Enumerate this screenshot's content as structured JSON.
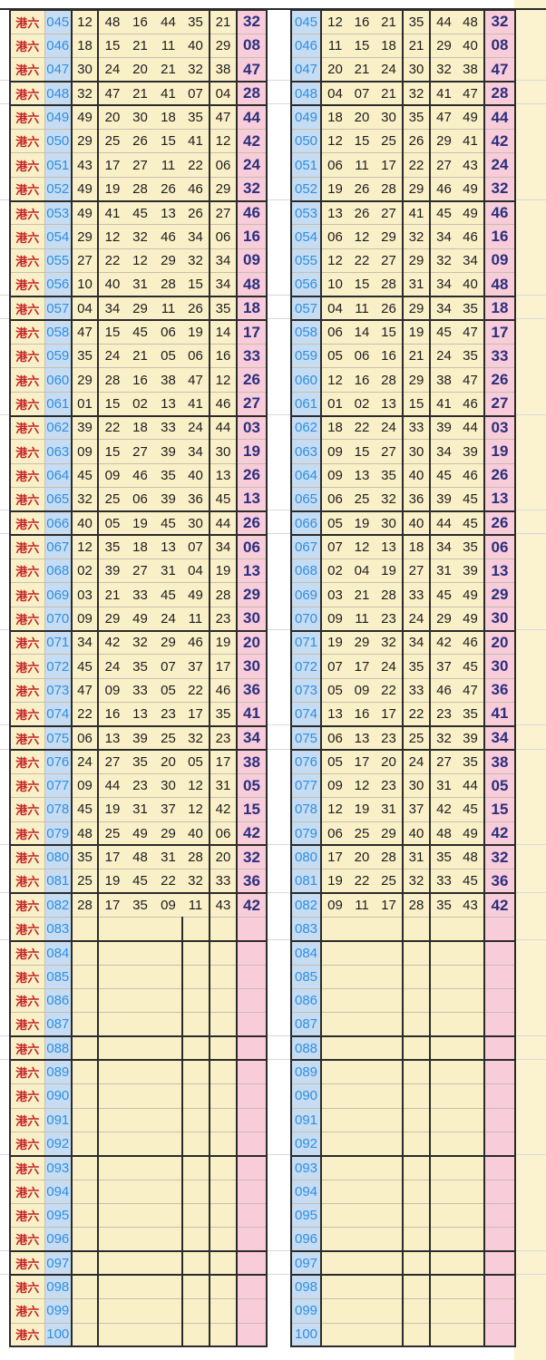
{
  "meta": {
    "series_label": "港六",
    "first_issue": "045",
    "last_issue": "100",
    "left_table": "numbers in drawn order",
    "right_table": "numbers in ascending order"
  },
  "colors": {
    "cell_yellow": "#FAF0C8",
    "issue_column_blue": "#C6DCF2",
    "special_column_pink": "#F8CCD9",
    "right_margin_strip": "#FBF2D0",
    "series_label_red": "#C52222",
    "issue_text_blue": "#2E8FE2",
    "number_text": "#1D1D1D",
    "special_text_navy": "#2B2F7E",
    "thin_border": "#C6BFAE",
    "heavy_border": "#2B2B2B"
  },
  "heavy_after": [
    47,
    48,
    52,
    56,
    57,
    61,
    65,
    66,
    70,
    74,
    75,
    79,
    81,
    83,
    87,
    88,
    92,
    96,
    97
  ],
  "rows": [
    {
      "issue": "045",
      "drawn": [
        "12",
        "48",
        "16",
        "44",
        "35",
        "21"
      ],
      "sorted": [
        "12",
        "16",
        "21",
        "35",
        "44",
        "48"
      ],
      "special": "32"
    },
    {
      "issue": "046",
      "drawn": [
        "18",
        "15",
        "21",
        "11",
        "40",
        "29"
      ],
      "sorted": [
        "11",
        "15",
        "18",
        "21",
        "29",
        "40"
      ],
      "special": "08"
    },
    {
      "issue": "047",
      "drawn": [
        "30",
        "24",
        "20",
        "21",
        "32",
        "38"
      ],
      "sorted": [
        "20",
        "21",
        "24",
        "30",
        "32",
        "38"
      ],
      "special": "47"
    },
    {
      "issue": "048",
      "drawn": [
        "32",
        "47",
        "21",
        "41",
        "07",
        "04"
      ],
      "sorted": [
        "04",
        "07",
        "21",
        "32",
        "41",
        "47"
      ],
      "special": "28"
    },
    {
      "issue": "049",
      "drawn": [
        "49",
        "20",
        "30",
        "18",
        "35",
        "47"
      ],
      "sorted": [
        "18",
        "20",
        "30",
        "35",
        "47",
        "49"
      ],
      "special": "44"
    },
    {
      "issue": "050",
      "drawn": [
        "29",
        "25",
        "26",
        "15",
        "41",
        "12"
      ],
      "sorted": [
        "12",
        "15",
        "25",
        "26",
        "29",
        "41"
      ],
      "special": "42"
    },
    {
      "issue": "051",
      "drawn": [
        "43",
        "17",
        "27",
        "11",
        "22",
        "06"
      ],
      "sorted": [
        "06",
        "11",
        "17",
        "22",
        "27",
        "43"
      ],
      "special": "24"
    },
    {
      "issue": "052",
      "drawn": [
        "49",
        "19",
        "28",
        "26",
        "46",
        "29"
      ],
      "sorted": [
        "19",
        "26",
        "28",
        "29",
        "46",
        "49"
      ],
      "special": "32"
    },
    {
      "issue": "053",
      "drawn": [
        "49",
        "41",
        "45",
        "13",
        "26",
        "27"
      ],
      "sorted": [
        "13",
        "26",
        "27",
        "41",
        "45",
        "49"
      ],
      "special": "46"
    },
    {
      "issue": "054",
      "drawn": [
        "29",
        "12",
        "32",
        "46",
        "34",
        "06"
      ],
      "sorted": [
        "06",
        "12",
        "29",
        "32",
        "34",
        "46"
      ],
      "special": "16"
    },
    {
      "issue": "055",
      "drawn": [
        "27",
        "22",
        "12",
        "29",
        "32",
        "34"
      ],
      "sorted": [
        "12",
        "22",
        "27",
        "29",
        "32",
        "34"
      ],
      "special": "09"
    },
    {
      "issue": "056",
      "drawn": [
        "10",
        "40",
        "31",
        "28",
        "15",
        "34"
      ],
      "sorted": [
        "10",
        "15",
        "28",
        "31",
        "34",
        "40"
      ],
      "special": "48"
    },
    {
      "issue": "057",
      "drawn": [
        "04",
        "34",
        "29",
        "11",
        "26",
        "35"
      ],
      "sorted": [
        "04",
        "11",
        "26",
        "29",
        "34",
        "35"
      ],
      "special": "18"
    },
    {
      "issue": "058",
      "drawn": [
        "47",
        "15",
        "45",
        "06",
        "19",
        "14"
      ],
      "sorted": [
        "06",
        "14",
        "15",
        "19",
        "45",
        "47"
      ],
      "special": "17"
    },
    {
      "issue": "059",
      "drawn": [
        "35",
        "24",
        "21",
        "05",
        "06",
        "16"
      ],
      "sorted": [
        "05",
        "06",
        "16",
        "21",
        "24",
        "35"
      ],
      "special": "33"
    },
    {
      "issue": "060",
      "drawn": [
        "29",
        "28",
        "16",
        "38",
        "47",
        "12"
      ],
      "sorted": [
        "12",
        "16",
        "28",
        "29",
        "38",
        "47"
      ],
      "special": "26"
    },
    {
      "issue": "061",
      "drawn": [
        "01",
        "15",
        "02",
        "13",
        "41",
        "46"
      ],
      "sorted": [
        "01",
        "02",
        "13",
        "15",
        "41",
        "46"
      ],
      "special": "27"
    },
    {
      "issue": "062",
      "drawn": [
        "39",
        "22",
        "18",
        "33",
        "24",
        "44"
      ],
      "sorted": [
        "18",
        "22",
        "24",
        "33",
        "39",
        "44"
      ],
      "special": "03"
    },
    {
      "issue": "063",
      "drawn": [
        "09",
        "15",
        "27",
        "39",
        "34",
        "30"
      ],
      "sorted": [
        "09",
        "15",
        "27",
        "30",
        "34",
        "39"
      ],
      "special": "19"
    },
    {
      "issue": "064",
      "drawn": [
        "45",
        "09",
        "46",
        "35",
        "40",
        "13"
      ],
      "sorted": [
        "09",
        "13",
        "35",
        "40",
        "45",
        "46"
      ],
      "special": "26"
    },
    {
      "issue": "065",
      "drawn": [
        "32",
        "25",
        "06",
        "39",
        "36",
        "45"
      ],
      "sorted": [
        "06",
        "25",
        "32",
        "36",
        "39",
        "45"
      ],
      "special": "13"
    },
    {
      "issue": "066",
      "drawn": [
        "40",
        "05",
        "19",
        "45",
        "30",
        "44"
      ],
      "sorted": [
        "05",
        "19",
        "30",
        "40",
        "44",
        "45"
      ],
      "special": "26"
    },
    {
      "issue": "067",
      "drawn": [
        "12",
        "35",
        "18",
        "13",
        "07",
        "34"
      ],
      "sorted": [
        "07",
        "12",
        "13",
        "18",
        "34",
        "35"
      ],
      "special": "06"
    },
    {
      "issue": "068",
      "drawn": [
        "02",
        "39",
        "27",
        "31",
        "04",
        "19"
      ],
      "sorted": [
        "02",
        "04",
        "19",
        "27",
        "31",
        "39"
      ],
      "special": "13"
    },
    {
      "issue": "069",
      "drawn": [
        "03",
        "21",
        "33",
        "45",
        "49",
        "28"
      ],
      "sorted": [
        "03",
        "21",
        "28",
        "33",
        "45",
        "49"
      ],
      "special": "29"
    },
    {
      "issue": "070",
      "drawn": [
        "09",
        "29",
        "49",
        "24",
        "11",
        "23"
      ],
      "sorted": [
        "09",
        "11",
        "23",
        "24",
        "29",
        "49"
      ],
      "special": "30"
    },
    {
      "issue": "071",
      "drawn": [
        "34",
        "42",
        "32",
        "29",
        "46",
        "19"
      ],
      "sorted": [
        "19",
        "29",
        "32",
        "34",
        "42",
        "46"
      ],
      "special": "20"
    },
    {
      "issue": "072",
      "drawn": [
        "45",
        "24",
        "35",
        "07",
        "37",
        "17"
      ],
      "sorted": [
        "07",
        "17",
        "24",
        "35",
        "37",
        "45"
      ],
      "special": "30"
    },
    {
      "issue": "073",
      "drawn": [
        "47",
        "09",
        "33",
        "05",
        "22",
        "46"
      ],
      "sorted": [
        "05",
        "09",
        "22",
        "33",
        "46",
        "47"
      ],
      "special": "36"
    },
    {
      "issue": "074",
      "drawn": [
        "22",
        "16",
        "13",
        "23",
        "17",
        "35"
      ],
      "sorted": [
        "13",
        "16",
        "17",
        "22",
        "23",
        "35"
      ],
      "special": "41"
    },
    {
      "issue": "075",
      "drawn": [
        "06",
        "13",
        "39",
        "25",
        "32",
        "23"
      ],
      "sorted": [
        "06",
        "13",
        "23",
        "25",
        "32",
        "39"
      ],
      "special": "34"
    },
    {
      "issue": "076",
      "drawn": [
        "24",
        "27",
        "35",
        "20",
        "05",
        "17"
      ],
      "sorted": [
        "05",
        "17",
        "20",
        "24",
        "27",
        "35"
      ],
      "special": "38"
    },
    {
      "issue": "077",
      "drawn": [
        "09",
        "44",
        "23",
        "30",
        "12",
        "31"
      ],
      "sorted": [
        "09",
        "12",
        "23",
        "30",
        "31",
        "44"
      ],
      "special": "05"
    },
    {
      "issue": "078",
      "drawn": [
        "45",
        "19",
        "31",
        "37",
        "12",
        "42"
      ],
      "sorted": [
        "12",
        "19",
        "31",
        "37",
        "42",
        "45"
      ],
      "special": "15"
    },
    {
      "issue": "079",
      "drawn": [
        "48",
        "25",
        "49",
        "29",
        "40",
        "06"
      ],
      "sorted": [
        "06",
        "25",
        "29",
        "40",
        "48",
        "49"
      ],
      "special": "42"
    },
    {
      "issue": "080",
      "drawn": [
        "35",
        "17",
        "48",
        "31",
        "28",
        "20"
      ],
      "sorted": [
        "17",
        "20",
        "28",
        "31",
        "35",
        "48"
      ],
      "special": "32"
    },
    {
      "issue": "081",
      "drawn": [
        "25",
        "19",
        "45",
        "22",
        "32",
        "33"
      ],
      "sorted": [
        "19",
        "22",
        "25",
        "32",
        "33",
        "45"
      ],
      "special": "36"
    },
    {
      "issue": "082",
      "drawn": [
        "28",
        "17",
        "35",
        "09",
        "11",
        "43"
      ],
      "sorted": [
        "09",
        "11",
        "17",
        "28",
        "35",
        "43"
      ],
      "special": "42"
    },
    {
      "issue": "083",
      "drawn": [],
      "sorted": [],
      "special": ""
    },
    {
      "issue": "084",
      "drawn": [],
      "sorted": [],
      "special": ""
    },
    {
      "issue": "085",
      "drawn": [],
      "sorted": [],
      "special": ""
    },
    {
      "issue": "086",
      "drawn": [],
      "sorted": [],
      "special": ""
    },
    {
      "issue": "087",
      "drawn": [],
      "sorted": [],
      "special": ""
    },
    {
      "issue": "088",
      "drawn": [],
      "sorted": [],
      "special": ""
    },
    {
      "issue": "089",
      "drawn": [],
      "sorted": [],
      "special": ""
    },
    {
      "issue": "090",
      "drawn": [],
      "sorted": [],
      "special": ""
    },
    {
      "issue": "091",
      "drawn": [],
      "sorted": [],
      "special": ""
    },
    {
      "issue": "092",
      "drawn": [],
      "sorted": [],
      "special": ""
    },
    {
      "issue": "093",
      "drawn": [],
      "sorted": [],
      "special": ""
    },
    {
      "issue": "094",
      "drawn": [],
      "sorted": [],
      "special": ""
    },
    {
      "issue": "095",
      "drawn": [],
      "sorted": [],
      "special": ""
    },
    {
      "issue": "096",
      "drawn": [],
      "sorted": [],
      "special": ""
    },
    {
      "issue": "097",
      "drawn": [],
      "sorted": [],
      "special": ""
    },
    {
      "issue": "098",
      "drawn": [],
      "sorted": [],
      "special": ""
    },
    {
      "issue": "099",
      "drawn": [],
      "sorted": [],
      "special": ""
    },
    {
      "issue": "100",
      "drawn": [],
      "sorted": [],
      "special": ""
    }
  ]
}
